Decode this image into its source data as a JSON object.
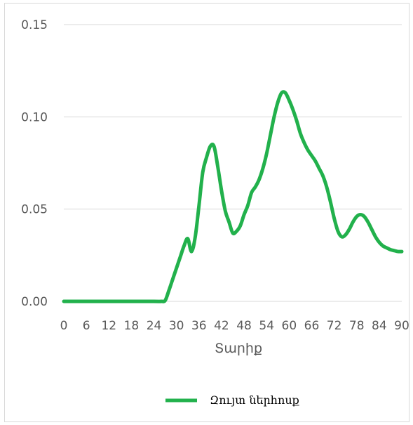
{
  "chart_data": {
    "type": "line",
    "xlabel": "Տարիք",
    "ylabel": "",
    "xlim": [
      0,
      90
    ],
    "ylim": [
      0,
      0.15
    ],
    "x_ticks": [
      "0",
      "6",
      "12",
      "18",
      "24",
      "30",
      "36",
      "42",
      "48",
      "54",
      "60",
      "66",
      "72",
      "78",
      "84",
      "90"
    ],
    "y_ticks": [
      "0.00",
      "0.05",
      "0.10",
      "0.15"
    ],
    "grid": true,
    "legend_position": "bottom",
    "series": [
      {
        "name": "Զույտ ներհոսք",
        "color": "#22b14c",
        "x": [
          0,
          6,
          12,
          18,
          24,
          26,
          27,
          28,
          29,
          30,
          31,
          32,
          33,
          34,
          35,
          36,
          37,
          38,
          39,
          40,
          41,
          42,
          43,
          44,
          45,
          46,
          47,
          48,
          49,
          50,
          51,
          52,
          53,
          54,
          55,
          56,
          57,
          58,
          59,
          60,
          61,
          62,
          63,
          64,
          65,
          66,
          67,
          68,
          69,
          70,
          71,
          72,
          73,
          74,
          75,
          76,
          77,
          78,
          79,
          80,
          81,
          82,
          83,
          84,
          85,
          86,
          87,
          88,
          89,
          90
        ],
        "y": [
          0,
          0,
          0,
          0,
          0,
          0,
          0.0005,
          0.006,
          0.012,
          0.018,
          0.024,
          0.03,
          0.034,
          0.027,
          0.035,
          0.052,
          0.07,
          0.078,
          0.084,
          0.084,
          0.073,
          0.06,
          0.049,
          0.043,
          0.037,
          0.038,
          0.041,
          0.047,
          0.052,
          0.059,
          0.062,
          0.066,
          0.072,
          0.08,
          0.09,
          0.1,
          0.108,
          0.113,
          0.113,
          0.109,
          0.104,
          0.098,
          0.091,
          0.086,
          0.082,
          0.079,
          0.076,
          0.072,
          0.068,
          0.062,
          0.054,
          0.045,
          0.038,
          0.035,
          0.036,
          0.039,
          0.043,
          0.046,
          0.047,
          0.046,
          0.043,
          0.039,
          0.035,
          0.032,
          0.03,
          0.029,
          0.028,
          0.0275,
          0.027,
          0.027
        ]
      }
    ]
  }
}
